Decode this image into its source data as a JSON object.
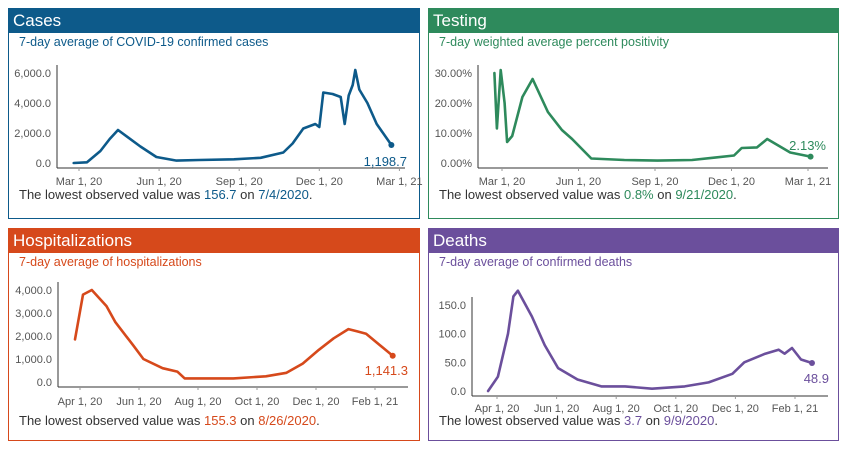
{
  "panels": [
    {
      "title": "Cases",
      "subtitle": "7-day average of COVID-19 confirmed cases",
      "footer": {
        "prefix": "The lowest observed value was ",
        "value": "156.7",
        "mid": " on ",
        "date": "7/4/2020",
        "suffix": "."
      },
      "color": "#0d5a8a"
    },
    {
      "title": "Testing",
      "subtitle": "7-day weighted average percent positivity",
      "footer": {
        "prefix": "The lowest observed value was ",
        "value": "0.8%",
        "mid": " on ",
        "date": "9/21/2020",
        "suffix": "."
      },
      "color": "#2e8a5c"
    },
    {
      "title": "Hospitalizations",
      "subtitle": "7-day average of hospitalizations",
      "footer": {
        "prefix": "The lowest observed value was ",
        "value": "155.3",
        "mid": " on ",
        "date": "8/26/2020",
        "suffix": "."
      },
      "color": "#d6491b"
    },
    {
      "title": "Deaths",
      "subtitle": "7-day average of confirmed deaths",
      "footer": {
        "prefix": "The lowest observed value was ",
        "value": "3.7",
        "mid": " on ",
        "date": "9/9/2020",
        "suffix": "."
      },
      "color": "#6b4f9c"
    }
  ],
  "chart_data": [
    {
      "type": "line",
      "title": "7-day average of COVID-19 confirmed cases",
      "x_unit": "months since Mar 1, 2020",
      "ylim": [
        0,
        6000
      ],
      "yticks": [
        {
          "v": 0,
          "label": "0.0"
        },
        {
          "v": 2000,
          "label": "2,000.0"
        },
        {
          "v": 4000,
          "label": "4,000.0"
        },
        {
          "v": 6000,
          "label": "6,000.0"
        }
      ],
      "xticks": [
        {
          "v": 0,
          "label": "Mar 1, 20"
        },
        {
          "v": 3,
          "label": "Jun 1, 20"
        },
        {
          "v": 6,
          "label": "Sep 1, 20"
        },
        {
          "v": 9,
          "label": "Dec 1, 20"
        },
        {
          "v": 12,
          "label": "Mar 1, 21"
        }
      ],
      "last_label": "1,198.7",
      "points": [
        [
          -0.2,
          0
        ],
        [
          0.3,
          50
        ],
        [
          0.8,
          800
        ],
        [
          1.15,
          1600
        ],
        [
          1.46,
          2200
        ],
        [
          2.3,
          1100
        ],
        [
          2.9,
          400
        ],
        [
          3.65,
          160
        ],
        [
          4.5,
          200
        ],
        [
          5.8,
          250
        ],
        [
          6.8,
          350
        ],
        [
          7.65,
          700
        ],
        [
          8.0,
          1300
        ],
        [
          8.4,
          2300
        ],
        [
          8.85,
          2600
        ],
        [
          9.0,
          2400
        ],
        [
          9.15,
          4700
        ],
        [
          9.5,
          4600
        ],
        [
          9.8,
          4400
        ],
        [
          9.95,
          2600
        ],
        [
          10.1,
          4500
        ],
        [
          10.25,
          5200
        ],
        [
          10.35,
          6200
        ],
        [
          10.5,
          4900
        ],
        [
          10.8,
          4000
        ],
        [
          11.15,
          2600
        ],
        [
          11.7,
          1199
        ]
      ]
    },
    {
      "type": "line",
      "title": "7-day weighted average percent positivity",
      "x_unit": "months since Mar 1, 2020",
      "ylim": [
        0,
        30
      ],
      "yticks": [
        {
          "v": 0,
          "label": "0.00%"
        },
        {
          "v": 10,
          "label": "10.00%"
        },
        {
          "v": 20,
          "label": "20.00%"
        },
        {
          "v": 30,
          "label": "30.00%"
        }
      ],
      "xticks": [
        {
          "v": 0,
          "label": "Mar 1, 20"
        },
        {
          "v": 3,
          "label": "Jun 1, 20"
        },
        {
          "v": 6,
          "label": "Sep 1, 20"
        },
        {
          "v": 9,
          "label": "Dec 1, 20"
        },
        {
          "v": 12,
          "label": "Mar 1, 21"
        }
      ],
      "last_label": "2.13%",
      "points": [
        [
          -0.3,
          30
        ],
        [
          -0.2,
          11.5
        ],
        [
          -0.05,
          31
        ],
        [
          0.1,
          20
        ],
        [
          0.2,
          7
        ],
        [
          0.4,
          9
        ],
        [
          0.8,
          22
        ],
        [
          1.2,
          28
        ],
        [
          1.8,
          17
        ],
        [
          2.35,
          11
        ],
        [
          2.75,
          8
        ],
        [
          3.5,
          1.5
        ],
        [
          4.8,
          1
        ],
        [
          6.1,
          0.8
        ],
        [
          7.45,
          1
        ],
        [
          8.35,
          1.8
        ],
        [
          9.1,
          2.5
        ],
        [
          9.4,
          5
        ],
        [
          10.0,
          5.2
        ],
        [
          10.4,
          8
        ],
        [
          11.3,
          3.5
        ],
        [
          12.1,
          2.13
        ]
      ]
    },
    {
      "type": "line",
      "title": "7-day average of hospitalizations",
      "x_unit": "months since Apr 1, 2020",
      "ylim": [
        0,
        4000
      ],
      "yticks": [
        {
          "v": 0,
          "label": "0.0"
        },
        {
          "v": 1000,
          "label": "1,000.0"
        },
        {
          "v": 2000,
          "label": "2,000.0"
        },
        {
          "v": 3000,
          "label": "3,000.0"
        },
        {
          "v": 4000,
          "label": "4,000.0"
        }
      ],
      "xticks": [
        {
          "v": 0,
          "label": "Apr 1, 20"
        },
        {
          "v": 2,
          "label": "Jun 1, 20"
        },
        {
          "v": 4,
          "label": "Aug 1, 20"
        },
        {
          "v": 6,
          "label": "Oct 1, 20"
        },
        {
          "v": 8,
          "label": "Dec 1, 20"
        },
        {
          "v": 10,
          "label": "Feb 1, 21"
        }
      ],
      "last_label": "1,141.3",
      "points": [
        [
          -0.17,
          1850
        ],
        [
          0.1,
          3800
        ],
        [
          0.4,
          4000
        ],
        [
          0.9,
          3300
        ],
        [
          1.2,
          2600
        ],
        [
          1.8,
          1600
        ],
        [
          2.15,
          1000
        ],
        [
          2.8,
          600
        ],
        [
          3.3,
          450
        ],
        [
          3.55,
          155
        ],
        [
          5.2,
          155
        ],
        [
          6.3,
          250
        ],
        [
          7.0,
          400
        ],
        [
          7.55,
          800
        ],
        [
          8.1,
          1400
        ],
        [
          8.6,
          1900
        ],
        [
          9.1,
          2300
        ],
        [
          9.4,
          2200
        ],
        [
          9.7,
          2100
        ],
        [
          10.6,
          1141
        ]
      ]
    },
    {
      "type": "line",
      "title": "7-day average of confirmed deaths",
      "x_unit": "months since Apr 1, 2020",
      "ylim": [
        0,
        150
      ],
      "yticks": [
        {
          "v": 0,
          "label": "0.0"
        },
        {
          "v": 50,
          "label": "50.0"
        },
        {
          "v": 100,
          "label": "100.0"
        },
        {
          "v": 150,
          "label": "150.0"
        }
      ],
      "xticks": [
        {
          "v": 0,
          "label": "Apr 1, 20"
        },
        {
          "v": 2,
          "label": "Jun 1, 20"
        },
        {
          "v": 4,
          "label": "Aug 1, 20"
        },
        {
          "v": 6,
          "label": "Oct 1, 20"
        },
        {
          "v": 8,
          "label": "Dec 1, 20"
        },
        {
          "v": 10,
          "label": "Feb 1, 21"
        }
      ],
      "last_label": "48.9",
      "points": [
        [
          -0.3,
          0
        ],
        [
          0.03,
          25
        ],
        [
          0.37,
          100
        ],
        [
          0.55,
          165
        ],
        [
          0.7,
          175
        ],
        [
          1.17,
          130
        ],
        [
          1.6,
          80
        ],
        [
          2.05,
          40
        ],
        [
          2.7,
          20
        ],
        [
          3.5,
          8
        ],
        [
          4.3,
          8
        ],
        [
          5.2,
          4
        ],
        [
          6.3,
          8
        ],
        [
          7.1,
          15
        ],
        [
          7.9,
          30
        ],
        [
          8.3,
          50
        ],
        [
          9.0,
          65
        ],
        [
          9.45,
          72
        ],
        [
          9.65,
          65
        ],
        [
          9.9,
          75
        ],
        [
          10.2,
          55
        ],
        [
          10.57,
          48.9
        ]
      ]
    }
  ]
}
